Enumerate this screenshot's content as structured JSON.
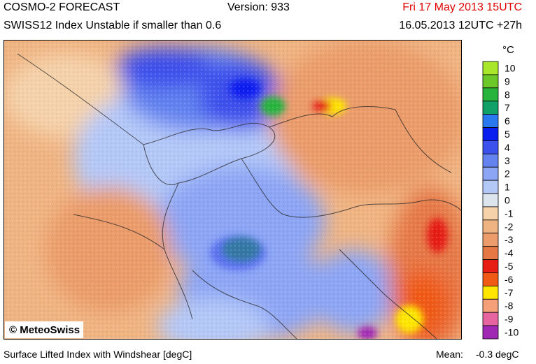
{
  "header": {
    "title": "COSMO-2 FORECAST",
    "version": "Version: 933",
    "valid_time": "Fri 17 May 2013 15UTC",
    "subtitle": "SWISS12 Index Unstable if smaller than 0.6",
    "run_time": "16.05.2013 12UTC +27h"
  },
  "map": {
    "credit": "© MeteoSwiss"
  },
  "legend": {
    "unit": "°C",
    "levels": [
      {
        "label": "10",
        "color": "#a8e62a"
      },
      {
        "label": "9",
        "color": "#6cc828"
      },
      {
        "label": "8",
        "color": "#28b43c"
      },
      {
        "label": "7",
        "color": "#10a068"
      },
      {
        "label": "6",
        "color": "#2a78f0"
      },
      {
        "label": "5",
        "color": "#0a1ef0"
      },
      {
        "label": "4",
        "color": "#3c50ec"
      },
      {
        "label": "3",
        "color": "#6482f0"
      },
      {
        "label": "2",
        "color": "#8ca5f5"
      },
      {
        "label": "1",
        "color": "#b4c8f8"
      },
      {
        "label": "0",
        "color": "#dce4ee"
      },
      {
        "label": "-1",
        "color": "#f5d2aa"
      },
      {
        "label": "-2",
        "color": "#f0b482"
      },
      {
        "label": "-3",
        "color": "#eb9c6a"
      },
      {
        "label": "-4",
        "color": "#e67846"
      },
      {
        "label": "-5",
        "color": "#e61e14"
      },
      {
        "label": "-6",
        "color": "#f05a14"
      },
      {
        "label": "-7",
        "color": "#ffe600"
      },
      {
        "label": "-8",
        "color": "#f5a078"
      },
      {
        "label": "-9",
        "color": "#e664a0"
      },
      {
        "label": "-10",
        "color": "#a028b4"
      }
    ]
  },
  "footer": {
    "description": "Surface Lifted Index with Windshear [degC]",
    "mean_label": "Mean:",
    "mean_value": "-0.3 degC"
  }
}
